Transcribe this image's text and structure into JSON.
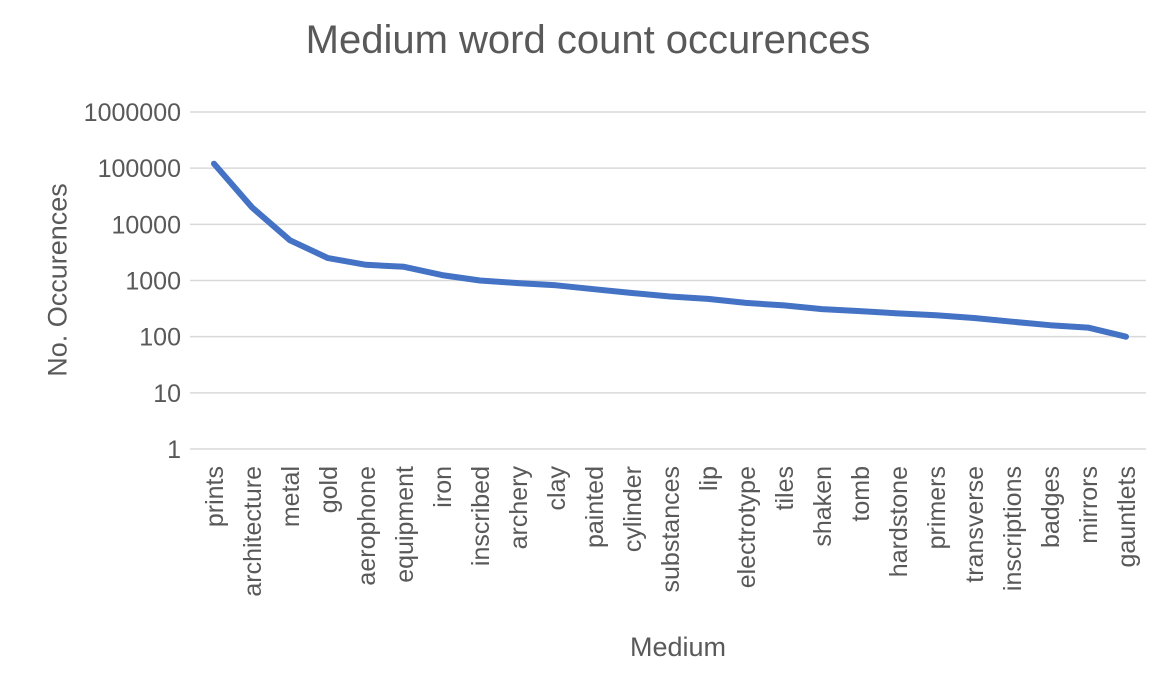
{
  "chart_data": {
    "type": "line",
    "title": "Medium word count occurences",
    "xlabel": "Medium",
    "ylabel": "No. Occurences",
    "y_scale": "log",
    "ylim": [
      1,
      1000000
    ],
    "y_ticks": [
      1,
      10,
      100,
      1000,
      10000,
      100000,
      1000000
    ],
    "y_tick_labels": [
      "1",
      "10",
      "100",
      "1000",
      "10000",
      "100000",
      "1000000"
    ],
    "grid": true,
    "legend": "none",
    "line_color": "#4472C4",
    "categories": [
      "prints",
      "architecture",
      "metal",
      "gold",
      "aerophone",
      "equipment",
      "iron",
      "inscribed",
      "archery",
      "clay",
      "painted",
      "cylinder",
      "substances",
      "lip",
      "electrotype",
      "tiles",
      "shaken",
      "tomb",
      "hardstone",
      "primers",
      "transverse",
      "inscriptions",
      "badges",
      "mirrors",
      "gauntlets"
    ],
    "series": [
      {
        "x": [
          "prints",
          "architecture",
          "metal",
          "gold",
          "aerophone",
          "equipment",
          "iron",
          "inscribed",
          "archery",
          "clay",
          "painted",
          "cylinder",
          "substances",
          "lip",
          "electrotype",
          "tiles",
          "shaken",
          "tomb",
          "hardstone",
          "primers",
          "transverse",
          "inscriptions",
          "badges",
          "mirrors",
          "gauntlets"
        ],
        "values": [
          120000,
          20000,
          5200,
          2500,
          1900,
          1750,
          1250,
          1000,
          900,
          820,
          700,
          600,
          520,
          470,
          400,
          360,
          310,
          285,
          260,
          240,
          215,
          185,
          160,
          145,
          100
        ]
      }
    ]
  }
}
